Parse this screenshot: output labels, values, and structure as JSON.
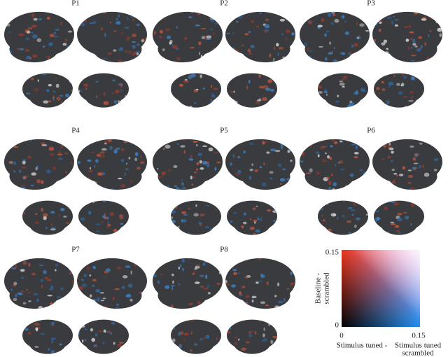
{
  "panels": [
    {
      "label": "P1"
    },
    {
      "label": "P2"
    },
    {
      "label": "P3"
    },
    {
      "label": "P4"
    },
    {
      "label": "P5"
    },
    {
      "label": "P6"
    },
    {
      "label": "P7"
    },
    {
      "label": "P8"
    }
  ],
  "legend": {
    "y_label_lines": [
      "Baseline -",
      "scrambled"
    ],
    "y_max": 0.15,
    "y_min": 0,
    "x_min": 0,
    "x_max": 0.15,
    "x_label_left": "Stimulus tuned -",
    "x_label_right_lines": [
      "Stimulus tuned",
      "scrambled"
    ]
  }
}
